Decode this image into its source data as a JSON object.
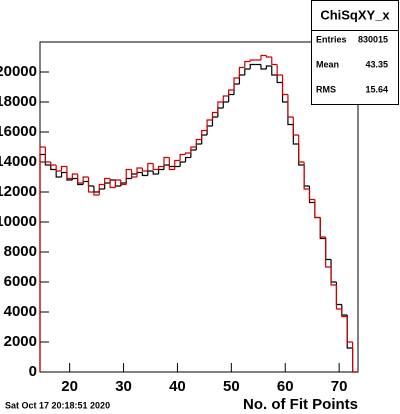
{
  "chart_data": {
    "type": "histogram",
    "title": "ChiSqXY_x",
    "x_label": "No. of Fit Points",
    "footer": "Sat Oct 17 20:18:51 2020",
    "stats": [
      {
        "label": "Entries",
        "value": 830015
      },
      {
        "label": "Mean",
        "value": 43.35
      },
      {
        "label": "RMS",
        "value": 15.64
      }
    ],
    "bins": [
      14.5,
      15.5,
      16.5,
      17.5,
      18.5,
      19.5,
      20.5,
      21.5,
      22.5,
      23.5,
      24.5,
      25.5,
      26.5,
      27.5,
      28.5,
      29.5,
      30.5,
      31.5,
      32.5,
      33.5,
      34.5,
      35.5,
      36.5,
      37.5,
      38.5,
      39.5,
      40.5,
      41.5,
      42.5,
      43.5,
      44.5,
      45.5,
      46.5,
      47.5,
      48.5,
      49.5,
      50.5,
      51.5,
      52.5,
      53.5,
      54.5,
      55.5,
      56.5,
      57.5,
      58.5,
      59.5,
      60.5,
      61.5,
      62.5,
      63.5,
      64.5,
      65.5,
      66.5,
      67.5,
      68.5,
      69.5,
      70.5,
      71.5,
      72.5,
      73.5
    ],
    "series": [
      {
        "color": "#000000",
        "values": [
          14500,
          13800,
          13500,
          13000,
          13300,
          12800,
          12900,
          12500,
          12700,
          12400,
          12000,
          12200,
          12600,
          12800,
          12400,
          12600,
          12900,
          13200,
          13300,
          13100,
          13400,
          13200,
          13500,
          13800,
          13700,
          13700,
          14000,
          14300,
          14800,
          15200,
          15800,
          16400,
          17000,
          17600,
          18000,
          18500,
          19200,
          19800,
          20200,
          20500,
          20500,
          20200,
          20400,
          19800,
          19300,
          18000,
          16500,
          15200,
          13800,
          12400,
          11300,
          10300,
          8900,
          7500,
          6000,
          4500,
          3800,
          1600,
          0
        ]
      },
      {
        "color": "#cc0000",
        "values": [
          15000,
          14000,
          13800,
          13400,
          13700,
          12900,
          13200,
          12600,
          13000,
          12000,
          11800,
          12500,
          12900,
          12300,
          12800,
          12500,
          13500,
          13000,
          13600,
          13400,
          13900,
          13500,
          13700,
          14300,
          13500,
          14100,
          14500,
          14600,
          15000,
          15500,
          16100,
          16800,
          17300,
          18000,
          18400,
          18800,
          19600,
          20300,
          20700,
          20800,
          20800,
          21100,
          21000,
          20500,
          19800,
          18500,
          17000,
          15800,
          14000,
          12200,
          11500,
          10300,
          9000,
          7000,
          5800,
          4200,
          3700,
          2000,
          0
        ]
      }
    ],
    "xlim": [
      14.5,
      73.5
    ],
    "xticks": [
      20,
      30,
      40,
      50,
      60,
      70
    ],
    "ylim": [
      0,
      22000
    ],
    "yticks": [
      0,
      {
        "value": 2000,
        "label": "2000"
      },
      {
        "value": 4000,
        "label": "4000"
      },
      {
        "value": 6000,
        "label": "6000"
      },
      {
        "value": 8000,
        "label": "8000"
      },
      {
        "value": 10000,
        "label": "10000"
      },
      {
        "value": 12000,
        "label": "12000"
      },
      {
        "value": 14000,
        "label": "14000"
      },
      {
        "value": 16000,
        "label": "16000"
      },
      {
        "value": 18000,
        "label": "18000"
      },
      {
        "value": 20000,
        "label": "20000"
      }
    ]
  }
}
